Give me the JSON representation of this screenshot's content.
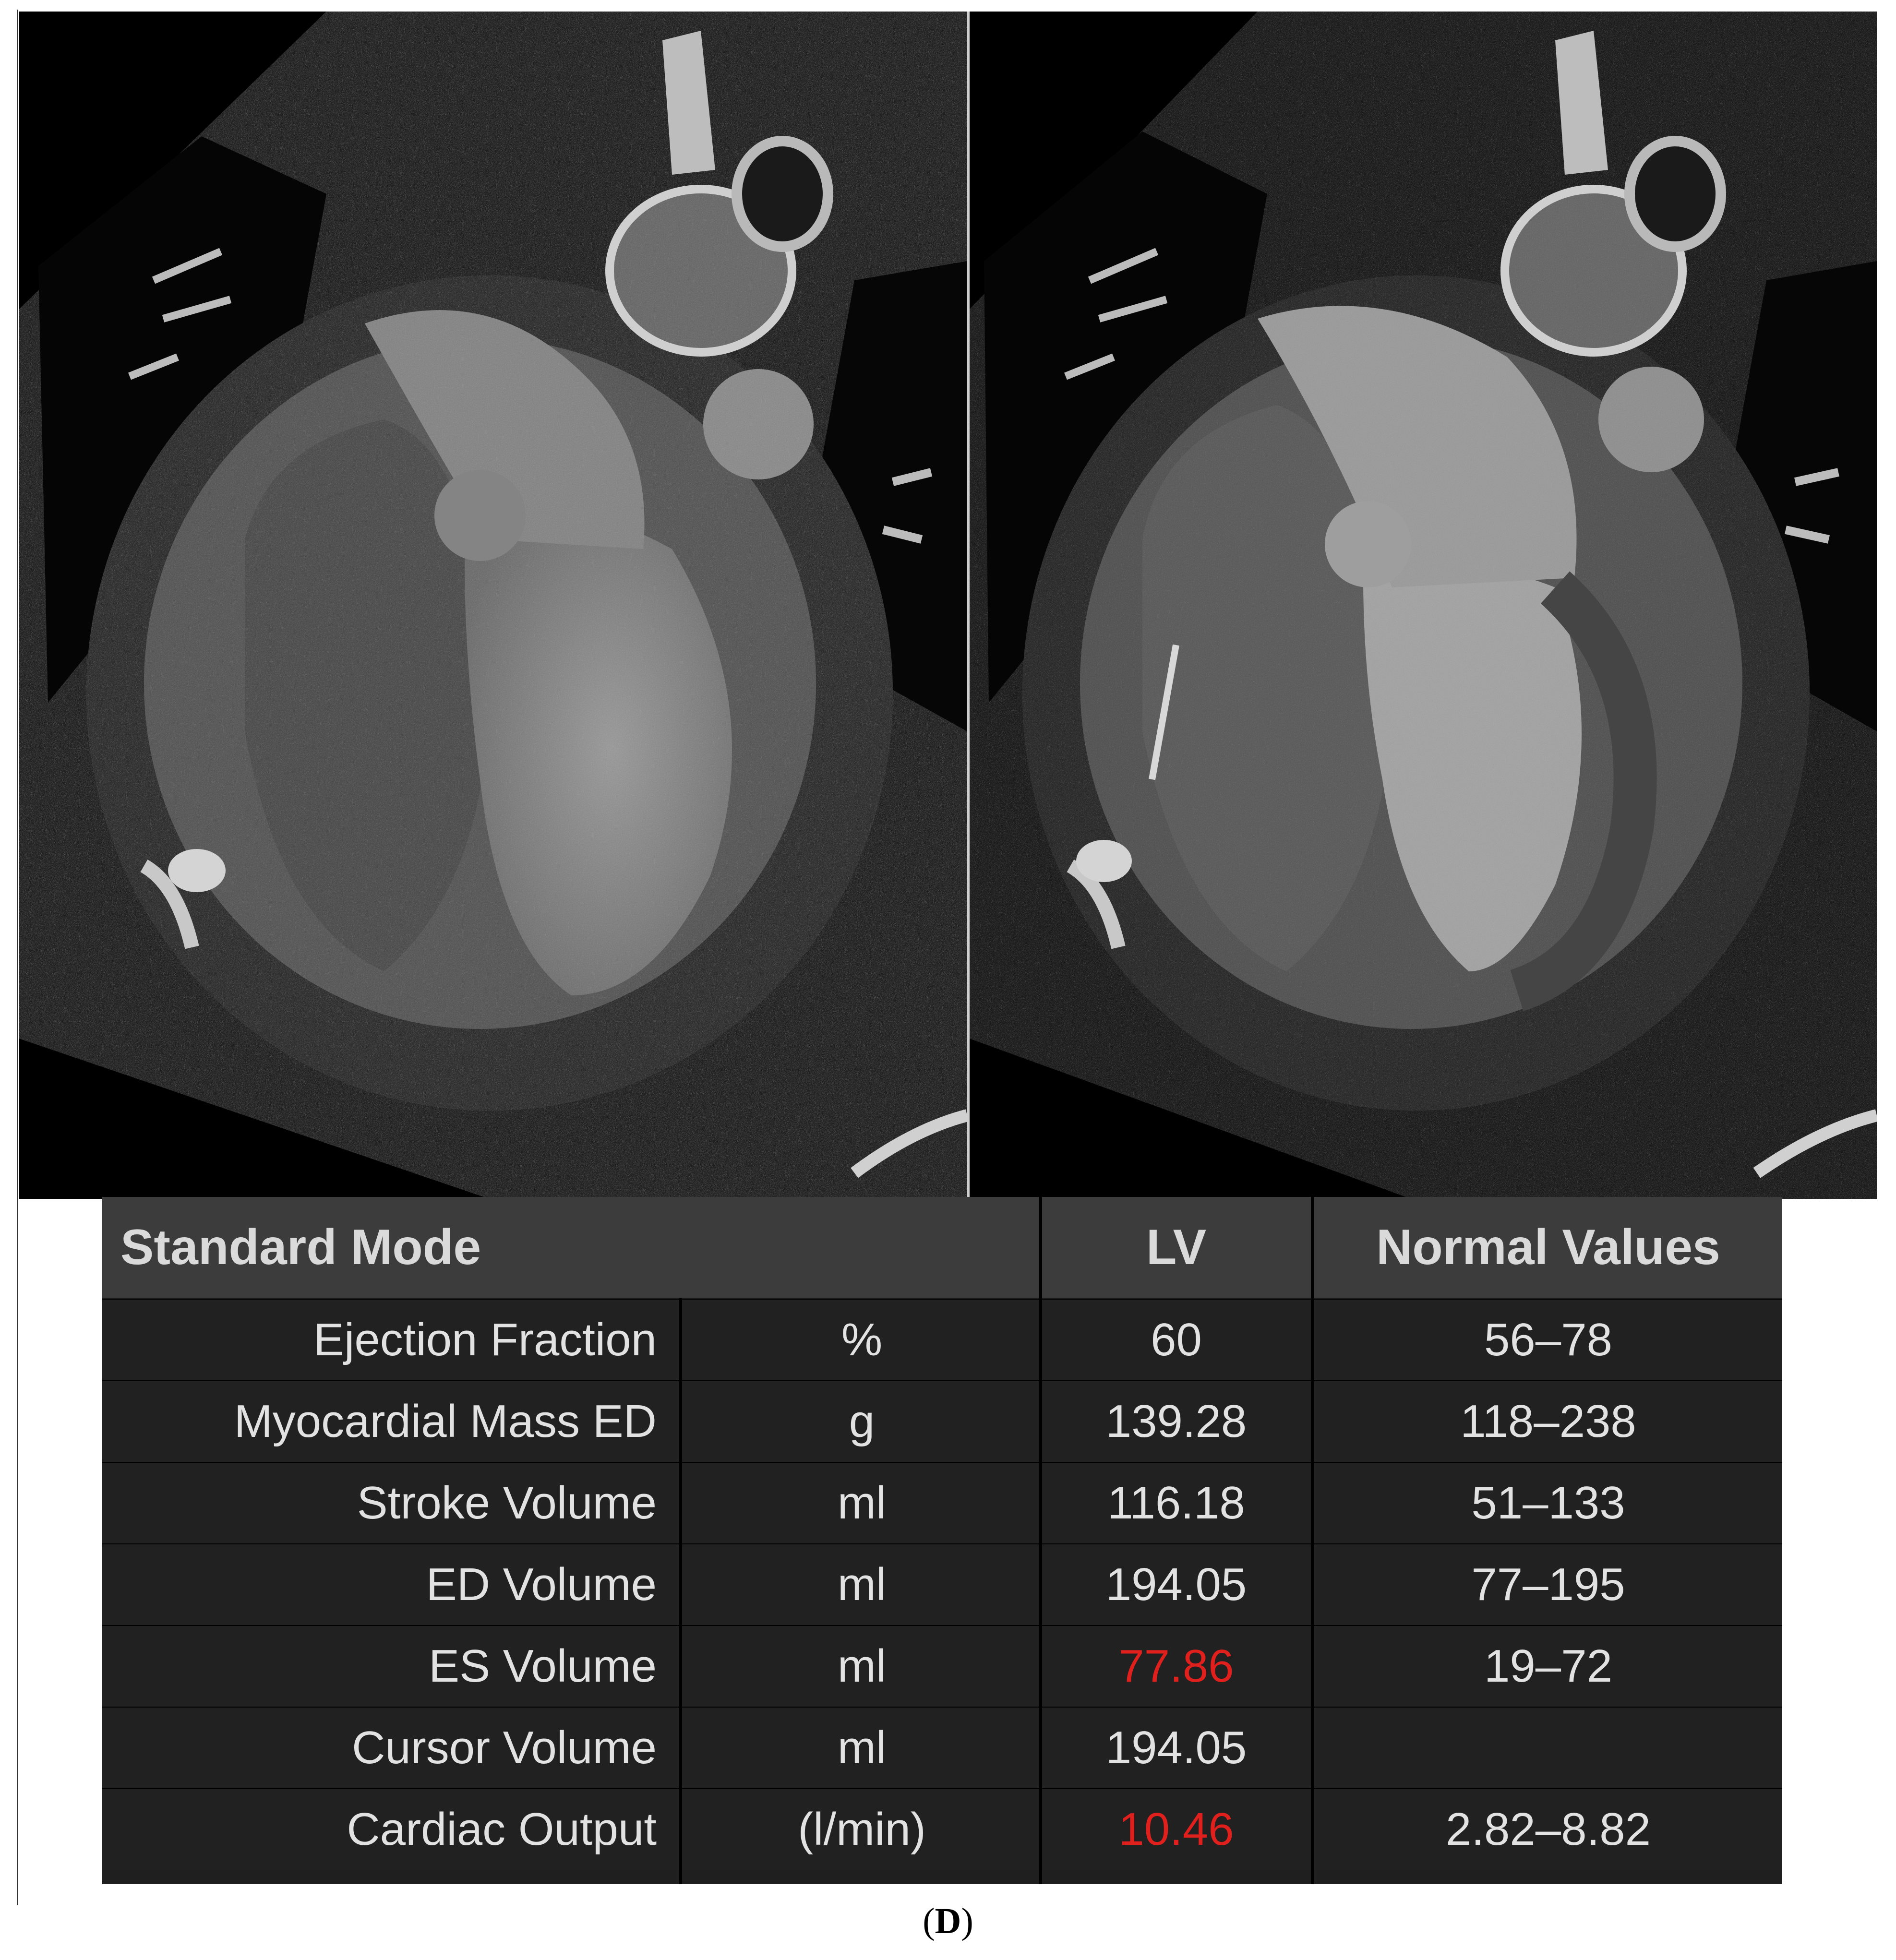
{
  "images": {
    "left": {
      "name": "ct-left-view",
      "kind": "grayscale cardiac CT scan"
    },
    "right": {
      "name": "ct-right-view",
      "kind": "grayscale cardiac CT scan"
    }
  },
  "table": {
    "header": {
      "mode": "Standard Mode",
      "lv": "LV",
      "normal": "Normal Values"
    },
    "rows": [
      {
        "label": "Ejection Fraction",
        "unit": "%",
        "lv": "60",
        "normal": "56–78",
        "lv_color": "#e2e2e2"
      },
      {
        "label": "Myocardial Mass ED",
        "unit": "g",
        "lv": "139.28",
        "normal": "118–238",
        "lv_color": "#e2e2e2"
      },
      {
        "label": "Stroke Volume",
        "unit": "ml",
        "lv": "116.18",
        "normal": "51–133",
        "lv_color": "#e2e2e2"
      },
      {
        "label": "ED Volume",
        "unit": "ml",
        "lv": "194.05",
        "normal": "77–195",
        "lv_color": "#e2e2e2"
      },
      {
        "label": "ES Volume",
        "unit": "ml",
        "lv": "77.86",
        "normal": "19–72",
        "lv_color": "#e0201c"
      },
      {
        "label": "Cursor Volume",
        "unit": "ml",
        "lv": "194.05",
        "normal": "",
        "lv_color": "#e2e2e2"
      },
      {
        "label": "Cardiac Output",
        "unit": "(l/min)",
        "lv": "10.46",
        "normal": "2.82–8.82",
        "lv_color": "#e0201c"
      }
    ]
  },
  "caption": {
    "open": "(",
    "letter": "D",
    "close": ")"
  }
}
